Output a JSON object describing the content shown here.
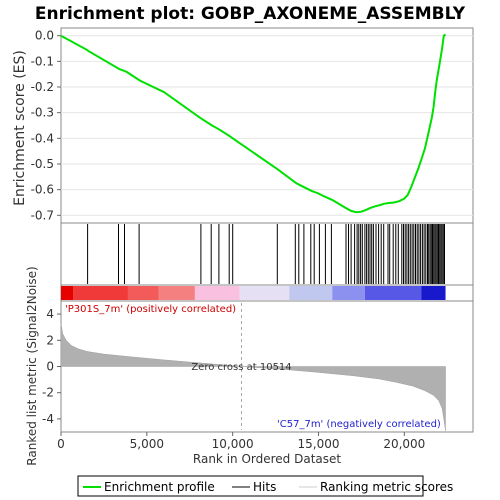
{
  "chart_data": {
    "type": "line",
    "title": "Enrichment plot: GOBP_AXONEME_ASSEMBLY",
    "top_panel": {
      "ylabel": "Enrichment score (ES)",
      "ylim": [
        -0.73,
        0.03
      ],
      "yticks": [
        0.0,
        -0.1,
        -0.2,
        -0.3,
        -0.4,
        -0.5,
        -0.6,
        -0.7
      ],
      "ytick_labels": [
        "0.0",
        "-0.1",
        "-0.2",
        "-0.3",
        "-0.4",
        "-0.5",
        "-0.6",
        "-0.7"
      ],
      "line_color": "#00e000",
      "series": [
        {
          "name": "Enrichment profile",
          "x": [
            0,
            1500,
            1600,
            3400,
            3800,
            4600,
            6000,
            8100,
            8800,
            9200,
            9800,
            10000,
            12600,
            13700,
            14000,
            14600,
            15000,
            15300,
            15800,
            16600,
            16900,
            17200,
            17500,
            17800,
            18000,
            18300,
            18600,
            18800,
            19100,
            19400,
            19700,
            20000,
            20200,
            20400,
            20600,
            20800,
            21000,
            21200,
            21400,
            21600,
            21700,
            21800,
            21900,
            22000,
            22100,
            22200,
            22300,
            22400
          ],
          "y": [
            0.0,
            -0.055,
            -0.06,
            -0.13,
            -0.14,
            -0.175,
            -0.22,
            -0.32,
            -0.35,
            -0.365,
            -0.39,
            -0.4,
            -0.52,
            -0.575,
            -0.585,
            -0.605,
            -0.615,
            -0.625,
            -0.64,
            -0.672,
            -0.683,
            -0.688,
            -0.686,
            -0.678,
            -0.672,
            -0.665,
            -0.66,
            -0.655,
            -0.652,
            -0.65,
            -0.645,
            -0.635,
            -0.62,
            -0.59,
            -0.555,
            -0.52,
            -0.48,
            -0.44,
            -0.38,
            -0.32,
            -0.28,
            -0.22,
            -0.17,
            -0.13,
            -0.09,
            -0.05,
            0.0,
            0.005
          ]
        }
      ]
    },
    "hits_panel": {
      "legend_name": "Hits",
      "hit_ranks": [
        1550,
        3350,
        3700,
        4550,
        8150,
        8750,
        9200,
        9800,
        10000,
        12600,
        13650,
        13850,
        14150,
        14550,
        14750,
        15050,
        15400,
        15750,
        16600,
        16750,
        16900,
        17100,
        17250,
        17350,
        17450,
        17550,
        17700,
        17800,
        17900,
        18000,
        18100,
        18200,
        18350,
        18500,
        18650,
        18800,
        19050,
        19150,
        19350,
        19500,
        19650,
        19850,
        19950,
        20050,
        20150,
        20250,
        20350,
        20450,
        20550,
        20650,
        20750,
        20850,
        20950,
        21050,
        21150,
        21250,
        21350,
        21420,
        21500,
        21570,
        21640,
        21710,
        21780,
        21850,
        21920,
        21990,
        22060,
        22130,
        22200,
        22270,
        22340
      ]
    },
    "heatmap_bar": {
      "label_positive": "'P301S_7m' (positively correlated)",
      "label_negative": "'C57_7m' (negatively correlated)",
      "positive_color": "#ff0000",
      "negative_color": "#0000ff",
      "segments": [
        {
          "x0": 0,
          "x1": 700,
          "color": "#e60000"
        },
        {
          "x0": 700,
          "x1": 3900,
          "color": "#f03a3a"
        },
        {
          "x0": 3900,
          "x1": 5700,
          "color": "#f35a5a"
        },
        {
          "x0": 5700,
          "x1": 7800,
          "color": "#f58080"
        },
        {
          "x0": 7800,
          "x1": 10400,
          "color": "#f9c0e0"
        },
        {
          "x0": 10400,
          "x1": 13300,
          "color": "#e6e0f4"
        },
        {
          "x0": 13300,
          "x1": 15800,
          "color": "#c0c8f0"
        },
        {
          "x0": 15800,
          "x1": 17700,
          "color": "#8c90ee"
        },
        {
          "x0": 17700,
          "x1": 21000,
          "color": "#5858e6"
        },
        {
          "x0": 21000,
          "x1": 22400,
          "color": "#1818cc"
        }
      ]
    },
    "bottom_panel": {
      "ylabel": "Ranked list metric (Signal2Noise)",
      "ylim": [
        -5,
        5
      ],
      "yticks": [
        4,
        2,
        0,
        -2,
        -4
      ],
      "ytick_labels": [
        "4",
        "2",
        "0",
        "-2",
        "-4"
      ],
      "fill_color": "#b0b0b0",
      "legend_name": "Ranking metric scores",
      "metric_x": [
        0,
        100,
        300,
        600,
        1000,
        1500,
        2500,
        4000,
        6000,
        8000,
        10514,
        13000,
        15000,
        17000,
        18500,
        19500,
        20500,
        21200,
        21700,
        22000,
        22200,
        22300,
        22400
      ],
      "metric_y": [
        3.3,
        2.5,
        2.0,
        1.6,
        1.35,
        1.15,
        0.95,
        0.75,
        0.5,
        0.28,
        0.0,
        -0.22,
        -0.45,
        -0.7,
        -0.95,
        -1.2,
        -1.5,
        -1.85,
        -2.2,
        -2.6,
        -3.2,
        -4.0,
        -4.9
      ],
      "zero_cross_label": "Zero cross at 10514",
      "zero_cross_rank": 10514
    },
    "x_axis": {
      "xlabel": "Rank in Ordered Dataset",
      "xlim": [
        0,
        24000
      ],
      "xticks": [
        0,
        5000,
        10000,
        15000,
        20000
      ],
      "xtick_labels": [
        "0",
        "5,000",
        "10,000",
        "15,000",
        "20,000"
      ]
    },
    "legend": {
      "position": "bottom",
      "entries": [
        "Enrichment profile",
        "Hits",
        "Ranking metric scores"
      ]
    }
  }
}
